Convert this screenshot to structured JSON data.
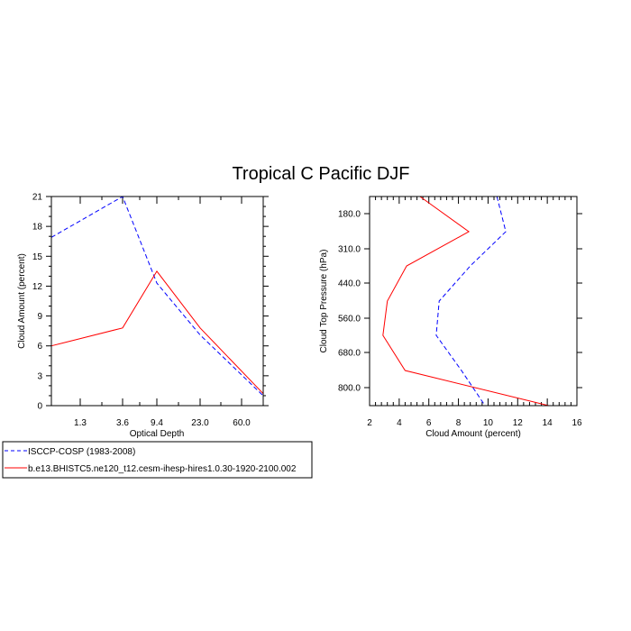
{
  "title": "Tropical C Pacific DJF",
  "colors": {
    "obs": "#0000ff",
    "model": "#ff0000"
  },
  "chart_data": [
    {
      "type": "line",
      "xlabel": "Optical Depth",
      "ylabel": "Cloud Amount (percent)",
      "x_tick_labels": [
        "1.3",
        "3.6",
        "9.4",
        "23.0",
        "60.0"
      ],
      "y_tick_labels": [
        "0",
        "3",
        "6",
        "9",
        "12",
        "15",
        "18",
        "21"
      ],
      "ylim": [
        0,
        21
      ],
      "series": [
        {
          "name": "ISCCP-COSP (1983-2008)",
          "style": "dashed",
          "color": "#0000ff",
          "values": [
            16.9,
            21.0,
            12.3,
            7.1,
            1.0
          ]
        },
        {
          "name": "b.e13.BHISTC5.ne120_t12.cesm-ihesp-hires1.0.30-1920-2100.002",
          "style": "solid",
          "color": "#ff0000",
          "values": [
            6.0,
            7.8,
            13.5,
            7.8,
            1.2
          ]
        }
      ]
    },
    {
      "type": "line",
      "xlabel": "Cloud Amount (percent)",
      "ylabel": "Cloud Top Pressure (hPa)",
      "x_tick_labels": [
        "2",
        "4",
        "6",
        "8",
        "10",
        "12",
        "14",
        "16"
      ],
      "xlim": [
        2,
        16
      ],
      "y_tick_labels": [
        "180.0",
        "310.0",
        "440.0",
        "560.0",
        "680.0",
        "800.0"
      ],
      "series": [
        {
          "name": "ISCCP-COSP (1983-2008)",
          "style": "dashed",
          "color": "#0000ff",
          "values": [
            10.6,
            11.2,
            8.8,
            6.7,
            6.5,
            8.2,
            9.8
          ]
        },
        {
          "name": "b.e13.BHISTC5.ne120_t12.cesm-ihesp-hires1.0.30-1920-2100.002",
          "style": "solid",
          "color": "#ff0000",
          "values": [
            5.4,
            8.7,
            4.5,
            3.2,
            2.9,
            4.4,
            14.1
          ]
        }
      ]
    }
  ]
}
